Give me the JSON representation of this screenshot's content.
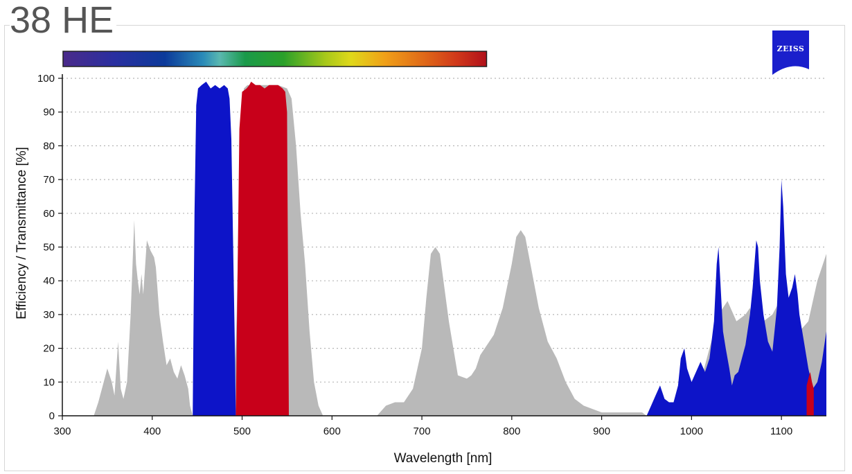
{
  "title": "38 HE",
  "logo": {
    "text": "ZEISS",
    "color": "#1a1fcc"
  },
  "chart_data": {
    "type": "area",
    "title": "38 HE",
    "xlabel": "Wavelength [nm]",
    "ylabel": "Efficiency / Transmittance [%]",
    "xlim": [
      300,
      1150
    ],
    "ylim": [
      0,
      100
    ],
    "xticks": [
      300,
      400,
      500,
      600,
      700,
      800,
      900,
      1000,
      1100
    ],
    "yticks": [
      0,
      10,
      20,
      30,
      40,
      50,
      60,
      70,
      80,
      90,
      100
    ],
    "grid": "horizontal-dotted",
    "spectrum_bar": {
      "x_range": [
        300,
        772
      ]
    },
    "series": [
      {
        "color": "#b9b9b9",
        "x": [
          300,
          335,
          340,
          345,
          350,
          355,
          358,
          362,
          365,
          368,
          372,
          376,
          380,
          382,
          384,
          386,
          388,
          390,
          394,
          398,
          402,
          404,
          408,
          412,
          416,
          420,
          424,
          428,
          432,
          436,
          440,
          442,
          445
        ],
        "values": [
          0,
          0,
          4,
          9,
          14,
          10,
          6,
          22,
          8,
          5,
          10,
          30,
          58,
          45,
          40,
          36,
          42,
          36,
          52,
          49,
          47,
          44,
          30,
          22,
          15,
          17,
          13,
          11,
          15,
          12,
          8,
          3,
          0
        ]
      },
      {
        "color": "#b9b9b9",
        "x": [
          490,
          494,
          498,
          502,
          506,
          510,
          520,
          530,
          540,
          550,
          555,
          560,
          565,
          570,
          575,
          580,
          585,
          590
        ],
        "values": [
          0,
          30,
          82,
          97,
          98,
          98,
          98,
          98,
          98,
          97,
          94,
          80,
          60,
          45,
          25,
          10,
          3,
          0
        ]
      },
      {
        "color": "#b9b9b9",
        "x": [
          650,
          660,
          670,
          680,
          690,
          700,
          705,
          710,
          715,
          720,
          725,
          730,
          740,
          750,
          755,
          760,
          765,
          770,
          780,
          790,
          800,
          805,
          810,
          815,
          820,
          830,
          840,
          850,
          860,
          870,
          880,
          890,
          900,
          910,
          920,
          930,
          940,
          945,
          950
        ],
        "values": [
          0,
          3,
          4,
          4,
          8,
          20,
          35,
          48,
          50,
          48,
          38,
          28,
          12,
          11,
          12,
          14,
          18,
          20,
          24,
          32,
          45,
          53,
          55,
          53,
          46,
          32,
          22,
          17,
          10,
          5,
          3,
          2,
          1,
          1,
          1,
          1,
          1,
          1,
          0
        ]
      },
      {
        "color": "#b9b9b9",
        "x": [
          1005,
          1012,
          1020,
          1030,
          1040,
          1050,
          1060,
          1065,
          1070,
          1080,
          1090,
          1100,
          1110,
          1120,
          1130,
          1140,
          1150
        ],
        "values": [
          0,
          12,
          20,
          30,
          34,
          28,
          30,
          32,
          25,
          28,
          30,
          35,
          30,
          25,
          28,
          40,
          48
        ]
      },
      {
        "color": "#0d14c8",
        "x": [
          445,
          447,
          449,
          451,
          455,
          460,
          465,
          470,
          475,
          480,
          484,
          486,
          488,
          490,
          492,
          493
        ],
        "values": [
          0,
          60,
          92,
          97,
          98,
          99,
          97,
          98,
          97,
          98,
          97,
          94,
          82,
          50,
          20,
          0
        ]
      },
      {
        "color": "#0d14c8",
        "x": [
          950,
          955,
          960,
          965,
          970,
          975,
          980,
          985,
          988,
          992,
          995,
          1000,
          1005,
          1010,
          1015,
          1020,
          1025,
          1028,
          1030,
          1032,
          1035,
          1038,
          1042,
          1045,
          1048,
          1052,
          1056,
          1060,
          1065,
          1068,
          1072,
          1074,
          1076,
          1080,
          1085,
          1090,
          1095,
          1098,
          1100,
          1102,
          1105,
          1108,
          1112,
          1115,
          1118,
          1120,
          1125,
          1130,
          1135,
          1140,
          1145,
          1150
        ],
        "values": [
          0,
          3,
          6,
          9,
          5,
          4,
          4,
          9,
          17,
          20,
          14,
          10,
          13,
          16,
          13,
          17,
          28,
          45,
          50,
          40,
          25,
          20,
          14,
          9,
          12,
          13,
          17,
          21,
          30,
          38,
          52,
          50,
          40,
          30,
          22,
          19,
          32,
          50,
          70,
          62,
          42,
          35,
          38,
          42,
          36,
          30,
          22,
          14,
          8,
          10,
          16,
          25
        ]
      },
      {
        "color": "#c8001a",
        "x": [
          493,
          497,
          500,
          505,
          508,
          510,
          515,
          520,
          525,
          530,
          535,
          540,
          545,
          548,
          550,
          552
        ],
        "values": [
          0,
          85,
          96,
          97,
          98,
          99,
          98,
          98,
          97,
          98,
          98,
          98,
          97,
          96,
          90,
          0
        ]
      },
      {
        "color": "#c8001a",
        "x": [
          1128,
          1130,
          1132,
          1134,
          1136
        ],
        "values": [
          9,
          11,
          13,
          10,
          8
        ]
      }
    ]
  }
}
